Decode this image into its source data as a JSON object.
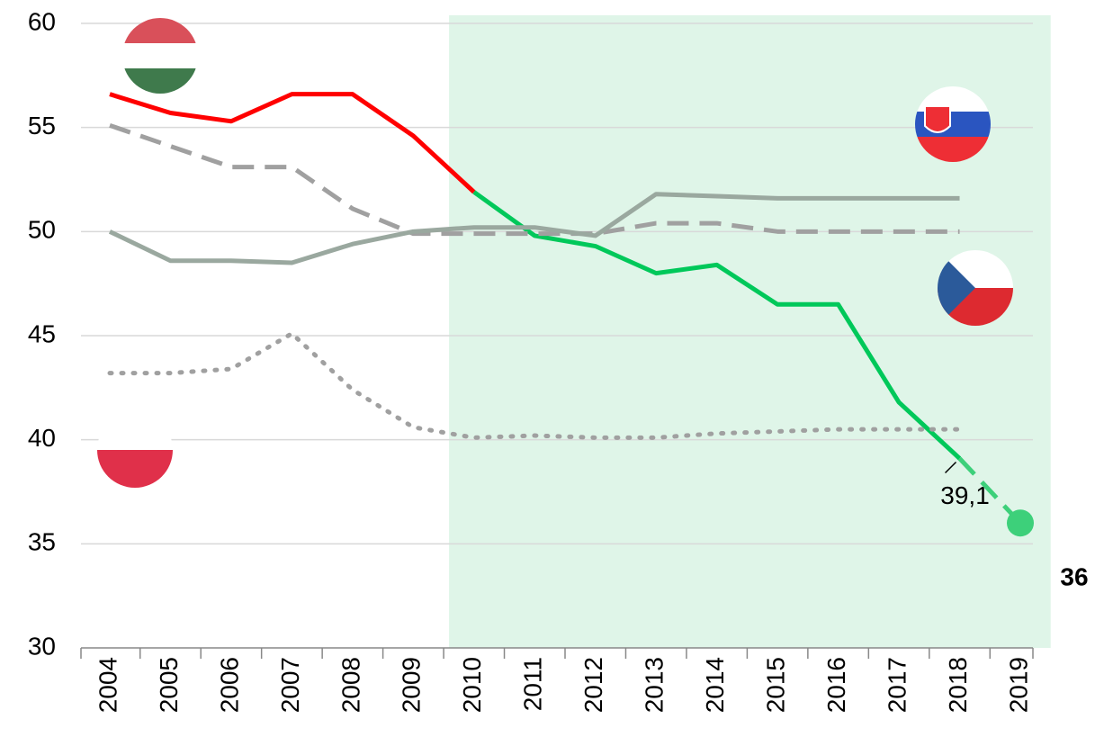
{
  "chart_data": {
    "type": "line",
    "categories": [
      "2004",
      "2005",
      "2006",
      "2007",
      "2008",
      "2009",
      "2010",
      "2011",
      "2012",
      "2013",
      "2014",
      "2015",
      "2016",
      "2017",
      "2018",
      "2019"
    ],
    "ylim": [
      30,
      60
    ],
    "yticks": [
      30,
      35,
      40,
      45,
      50,
      55,
      60
    ],
    "grid": true,
    "highlight": {
      "from": "2010",
      "to": "2019",
      "color": "#dff5e8"
    },
    "series": [
      {
        "color": "#ff0000",
        "style": "solid",
        "values": [
          56.6,
          55.7,
          55.3,
          56.6,
          56.6,
          54.6,
          51.9,
          null,
          null,
          null,
          null,
          null,
          null,
          null,
          null,
          null
        ]
      },
      {
        "color": "#00c85a",
        "style": "solid",
        "values": [
          null,
          null,
          null,
          null,
          null,
          null,
          51.9,
          49.8,
          49.3,
          48.0,
          48.4,
          46.5,
          46.5,
          41.8,
          39.1,
          null
        ],
        "value_labels": [
          null,
          null,
          null,
          null,
          null,
          null,
          null,
          null,
          null,
          null,
          null,
          null,
          null,
          null,
          "39,1",
          null
        ]
      },
      {
        "color": "#3dd07a",
        "style": "dashed",
        "marker_last": true,
        "values": [
          null,
          null,
          null,
          null,
          null,
          null,
          null,
          null,
          null,
          null,
          null,
          null,
          null,
          null,
          39.1,
          36
        ],
        "value_labels": [
          null,
          null,
          null,
          null,
          null,
          null,
          null,
          null,
          null,
          null,
          null,
          null,
          null,
          null,
          null,
          "36"
        ]
      },
      {
        "color": "#a0a0a0",
        "style": "dashed",
        "values": [
          55.1,
          54.1,
          53.1,
          53.1,
          51.1,
          49.9,
          49.9,
          49.9,
          49.9,
          50.4,
          50.4,
          50.0,
          50.0,
          50.0,
          50.0,
          null
        ]
      },
      {
        "color": "#9aa89f",
        "style": "solid",
        "values": [
          50.0,
          48.6,
          48.6,
          48.5,
          49.4,
          50.0,
          50.2,
          50.2,
          49.8,
          51.8,
          51.7,
          51.6,
          51.6,
          51.6,
          51.6,
          null
        ]
      },
      {
        "color": "#a0a0a0",
        "style": "dotted",
        "values": [
          43.2,
          43.2,
          43.4,
          45.1,
          42.4,
          40.6,
          40.1,
          40.2,
          40.1,
          40.1,
          40.3,
          40.4,
          40.5,
          40.5,
          40.5,
          null
        ]
      }
    ]
  }
}
